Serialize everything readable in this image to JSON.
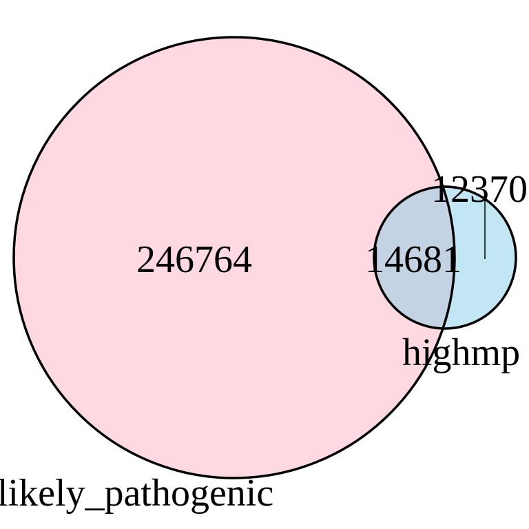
{
  "chart_data": {
    "type": "venn",
    "sets": [
      {
        "name": "likely_pathogenic",
        "only_count": "246764",
        "color": "#ffd9e1"
      },
      {
        "name": "highmp",
        "only_count": "12370",
        "color": "#c3e6f4"
      }
    ],
    "intersection": {
      "count": "14681",
      "color": "#c3d3e3"
    },
    "outline_color": "#000000"
  }
}
